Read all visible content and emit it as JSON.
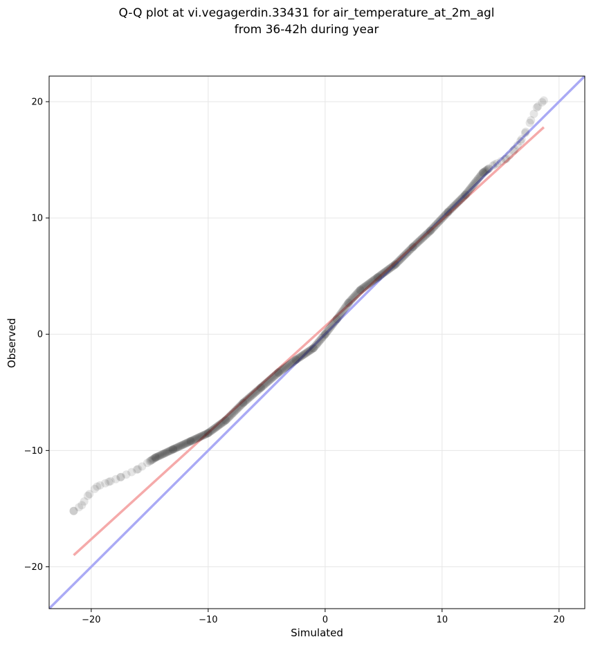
{
  "chart_data": {
    "type": "scatter",
    "title": "Q-Q plot at vi.vegagerdin.33431 for air_temperature_at_2m_agl",
    "subtitle": "from 36-42h during year",
    "xlabel": "Simulated",
    "ylabel": "Observed",
    "xlim": [
      -23.6,
      22.2
    ],
    "ylim": [
      -23.6,
      22.2
    ],
    "xticks": [
      -20,
      -10,
      0,
      10,
      20
    ],
    "yticks": [
      -20,
      -10,
      0,
      10,
      20
    ],
    "xtick_labels": [
      "−20",
      "−10",
      "0",
      "10",
      "20"
    ],
    "ytick_labels": [
      "−20",
      "−10",
      "0",
      "10",
      "20"
    ],
    "grid": true,
    "lines": [
      {
        "kind": "identity",
        "color": "#aaaaf5",
        "x": [
          -23.6,
          22.2
        ],
        "y": [
          -23.6,
          22.2
        ]
      },
      {
        "kind": "fit",
        "color": "#f5aaaa",
        "x": [
          -21.5,
          18.7
        ],
        "y": [
          -19.0,
          17.8
        ]
      }
    ],
    "quantile_curve": {
      "x": [
        -21.5,
        -20.8,
        -20.3,
        -19.5,
        -18.5,
        -17.5,
        -16.0,
        -14.5,
        -13.0,
        -11.5,
        -10.0,
        -8.5,
        -7.0,
        -5.5,
        -4.0,
        -2.5,
        -1.0,
        0.0,
        1.0,
        2.0,
        3.0,
        4.5,
        6.0,
        7.5,
        9.0,
        10.5,
        12.0,
        13.5,
        14.5,
        15.5,
        16.2,
        16.7,
        17.1,
        17.6,
        18.1,
        18.7
      ],
      "y": [
        -15.2,
        -14.7,
        -13.9,
        -13.1,
        -12.7,
        -12.3,
        -11.6,
        -10.6,
        -9.9,
        -9.2,
        -8.5,
        -7.4,
        -5.9,
        -4.6,
        -3.3,
        -2.2,
        -1.2,
        0.0,
        1.3,
        2.7,
        3.8,
        4.9,
        6.0,
        7.5,
        8.9,
        10.5,
        12.0,
        13.9,
        14.6,
        15.1,
        15.9,
        16.6,
        17.3,
        18.4,
        19.5,
        20.1
      ],
      "color": "#000000",
      "alpha": 0.1
    }
  }
}
